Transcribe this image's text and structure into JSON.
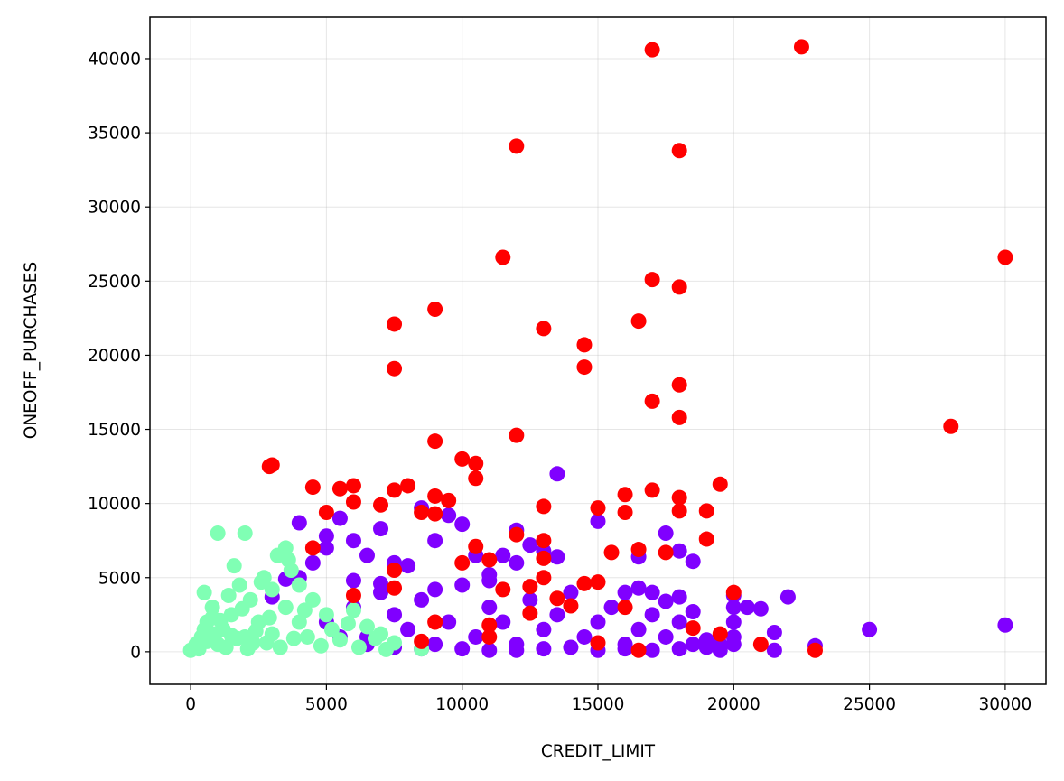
{
  "chart_data": {
    "type": "scatter",
    "title": "",
    "xlabel": "CREDIT_LIMIT",
    "ylabel": "ONEOFF_PURCHASES",
    "xlim": [
      -1500,
      31500
    ],
    "ylim": [
      -2200,
      42800
    ],
    "xticks": [
      0,
      5000,
      10000,
      15000,
      20000,
      25000,
      30000
    ],
    "yticks": [
      0,
      5000,
      10000,
      15000,
      20000,
      25000,
      30000,
      35000,
      40000
    ],
    "grid": true,
    "legend": "none",
    "colors": {
      "cluster_0": "#8000ff",
      "cluster_1": "#80ffb4",
      "cluster_2": "#ff0000"
    },
    "series": [
      {
        "color": "#8000ff",
        "points": [
          [
            5000,
            2000
          ],
          [
            5500,
            1000
          ],
          [
            6000,
            3000
          ],
          [
            6500,
            500
          ],
          [
            7000,
            4000
          ],
          [
            7500,
            2500
          ],
          [
            8000,
            1500
          ],
          [
            8500,
            3500
          ],
          [
            9000,
            500
          ],
          [
            9500,
            2000
          ],
          [
            10000,
            4500
          ],
          [
            10500,
            1000
          ],
          [
            11000,
            3000
          ],
          [
            11500,
            2000
          ],
          [
            12000,
            500
          ],
          [
            12500,
            3500
          ],
          [
            13000,
            1500
          ],
          [
            13500,
            2500
          ],
          [
            14000,
            4000
          ],
          [
            14500,
            1000
          ],
          [
            15000,
            2000
          ],
          [
            15500,
            3000
          ],
          [
            16000,
            500
          ],
          [
            16500,
            1500
          ],
          [
            17000,
            2500
          ],
          [
            17500,
            1000
          ],
          [
            18000,
            2000
          ],
          [
            18500,
            500
          ],
          [
            19000,
            300
          ],
          [
            19500,
            100
          ],
          [
            20000,
            1000
          ],
          [
            20000,
            2000
          ],
          [
            20000,
            3000
          ],
          [
            20000,
            3800
          ],
          [
            20500,
            3000
          ],
          [
            21000,
            2900
          ],
          [
            21500,
            1300
          ],
          [
            21500,
            100
          ],
          [
            22000,
            3700
          ],
          [
            23000,
            400
          ],
          [
            25000,
            1500
          ],
          [
            30000,
            1800
          ],
          [
            4000,
            8700
          ],
          [
            4500,
            6000
          ],
          [
            5000,
            7000
          ],
          [
            5000,
            7800
          ],
          [
            5500,
            9000
          ],
          [
            6000,
            7500
          ],
          [
            6500,
            6500
          ],
          [
            7000,
            8300
          ],
          [
            7500,
            6000
          ],
          [
            8000,
            5800
          ],
          [
            8500,
            9700
          ],
          [
            9000,
            7500
          ],
          [
            9500,
            9200
          ],
          [
            10000,
            8600
          ],
          [
            10500,
            6500
          ],
          [
            11000,
            5200
          ],
          [
            11500,
            6500
          ],
          [
            12000,
            8200
          ],
          [
            12500,
            7200
          ],
          [
            13000,
            6800
          ],
          [
            13500,
            12000
          ],
          [
            13500,
            6400
          ],
          [
            15000,
            8800
          ],
          [
            16500,
            6400
          ],
          [
            17500,
            8000
          ],
          [
            18000,
            6800
          ],
          [
            18500,
            6100
          ],
          [
            16000,
            4000
          ],
          [
            16500,
            4300
          ],
          [
            17000,
            4000
          ],
          [
            17500,
            3400
          ],
          [
            18000,
            3700
          ],
          [
            18500,
            2700
          ],
          [
            19000,
            800
          ],
          [
            12000,
            6000
          ],
          [
            11000,
            4800
          ],
          [
            9000,
            4200
          ],
          [
            7000,
            4600
          ],
          [
            6000,
            4800
          ],
          [
            4000,
            5000
          ],
          [
            3500,
            4900
          ],
          [
            3000,
            3700
          ],
          [
            6500,
            1000
          ],
          [
            7500,
            300
          ],
          [
            8500,
            200
          ],
          [
            10000,
            200
          ],
          [
            11000,
            100
          ],
          [
            12000,
            100
          ],
          [
            13000,
            200
          ],
          [
            14000,
            300
          ],
          [
            15000,
            100
          ],
          [
            16000,
            200
          ],
          [
            17000,
            100
          ],
          [
            18000,
            200
          ],
          [
            20000,
            500
          ],
          [
            19500,
            500
          ]
        ]
      },
      {
        "color": "#80ffb4",
        "points": [
          [
            0,
            100
          ],
          [
            200,
            500
          ],
          [
            400,
            1000
          ],
          [
            500,
            4000
          ],
          [
            600,
            2000
          ],
          [
            800,
            3000
          ],
          [
            1000,
            8000
          ],
          [
            1000,
            500
          ],
          [
            1200,
            1500
          ],
          [
            1500,
            2500
          ],
          [
            1600,
            5800
          ],
          [
            1800,
            4500
          ],
          [
            2000,
            8000
          ],
          [
            2000,
            1000
          ],
          [
            2200,
            3500
          ],
          [
            2500,
            2000
          ],
          [
            2700,
            5000
          ],
          [
            3000,
            4200
          ],
          [
            3000,
            1200
          ],
          [
            3200,
            6500
          ],
          [
            3500,
            7000
          ],
          [
            3500,
            3000
          ],
          [
            3700,
            5500
          ],
          [
            4000,
            4500
          ],
          [
            4000,
            2000
          ],
          [
            4300,
            1000
          ],
          [
            4500,
            3500
          ],
          [
            5000,
            2500
          ],
          [
            5200,
            1500
          ],
          [
            5500,
            800
          ],
          [
            6000,
            2800
          ],
          [
            6500,
            1700
          ],
          [
            7000,
            1200
          ],
          [
            7500,
            600
          ],
          [
            8500,
            200
          ],
          [
            300,
            200
          ],
          [
            600,
            700
          ],
          [
            900,
            1200
          ],
          [
            1300,
            300
          ],
          [
            1700,
            900
          ],
          [
            2100,
            200
          ],
          [
            2400,
            1400
          ],
          [
            2800,
            600
          ],
          [
            3300,
            300
          ],
          [
            3800,
            900
          ],
          [
            4800,
            400
          ],
          [
            6200,
            300
          ],
          [
            7200,
            150
          ],
          [
            1400,
            3800
          ],
          [
            2600,
            4700
          ],
          [
            3600,
            6200
          ],
          [
            1100,
            2100
          ],
          [
            1900,
            2900
          ],
          [
            2900,
            2300
          ],
          [
            4200,
            2800
          ],
          [
            5800,
            1900
          ],
          [
            6800,
            900
          ],
          [
            500,
            1500
          ],
          [
            800,
            2300
          ],
          [
            1500,
            1100
          ],
          [
            2300,
            600
          ]
        ]
      },
      {
        "color": "#ff0000",
        "points": [
          [
            17000,
            40600
          ],
          [
            22500,
            40800
          ],
          [
            12000,
            34100
          ],
          [
            18000,
            33800
          ],
          [
            11500,
            26600
          ],
          [
            30000,
            26600
          ],
          [
            17000,
            25100
          ],
          [
            18000,
            24600
          ],
          [
            9000,
            23100
          ],
          [
            7500,
            22100
          ],
          [
            16500,
            22300
          ],
          [
            13000,
            21800
          ],
          [
            14500,
            20700
          ],
          [
            7500,
            19100
          ],
          [
            14500,
            19200
          ],
          [
            18000,
            18000
          ],
          [
            17000,
            16900
          ],
          [
            18000,
            15800
          ],
          [
            28000,
            15200
          ],
          [
            12000,
            14600
          ],
          [
            9000,
            14200
          ],
          [
            2900,
            12500
          ],
          [
            3000,
            12600
          ],
          [
            10000,
            13000
          ],
          [
            10500,
            12700
          ],
          [
            10500,
            11700
          ],
          [
            4500,
            11100
          ],
          [
            5500,
            11000
          ],
          [
            6000,
            11200
          ],
          [
            7500,
            10900
          ],
          [
            8000,
            11200
          ],
          [
            19500,
            11300
          ],
          [
            9000,
            10500
          ],
          [
            9500,
            10200
          ],
          [
            6000,
            10100
          ],
          [
            7000,
            9900
          ],
          [
            13000,
            9800
          ],
          [
            15000,
            9700
          ],
          [
            16000,
            10600
          ],
          [
            17000,
            10900
          ],
          [
            18000,
            10400
          ],
          [
            5000,
            9400
          ],
          [
            8500,
            9400
          ],
          [
            9000,
            9300
          ],
          [
            16000,
            9400
          ],
          [
            18000,
            9500
          ],
          [
            19000,
            9500
          ],
          [
            12000,
            7900
          ],
          [
            13000,
            7500
          ],
          [
            19000,
            7600
          ],
          [
            4500,
            7000
          ],
          [
            10500,
            7100
          ],
          [
            15500,
            6700
          ],
          [
            16500,
            6900
          ],
          [
            17500,
            6700
          ],
          [
            11000,
            6200
          ],
          [
            13000,
            6300
          ],
          [
            10000,
            6000
          ],
          [
            7500,
            5500
          ],
          [
            13000,
            5000
          ],
          [
            14500,
            4600
          ],
          [
            15000,
            4700
          ],
          [
            20000,
            4000
          ],
          [
            14000,
            3100
          ],
          [
            16000,
            3000
          ],
          [
            12500,
            2600
          ],
          [
            9000,
            2000
          ],
          [
            11000,
            1800
          ],
          [
            18500,
            1600
          ],
          [
            19500,
            1200
          ],
          [
            11000,
            1000
          ],
          [
            15000,
            600
          ],
          [
            21000,
            500
          ],
          [
            8500,
            700
          ],
          [
            23000,
            100
          ],
          [
            16500,
            100
          ],
          [
            12500,
            4400
          ],
          [
            11500,
            4200
          ],
          [
            7500,
            4300
          ],
          [
            6000,
            3800
          ],
          [
            13500,
            3600
          ]
        ]
      }
    ]
  }
}
